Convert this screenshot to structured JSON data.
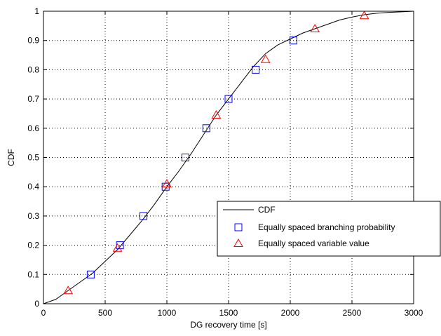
{
  "chart_data": {
    "type": "line",
    "xlabel": "DG recovery time [s]",
    "ylabel": "CDF",
    "xlim": [
      0,
      3000
    ],
    "ylim": [
      0,
      1
    ],
    "xticks": [
      0,
      500,
      1000,
      1500,
      2000,
      2500,
      3000
    ],
    "yticks": [
      0,
      0.1,
      0.2,
      0.3,
      0.4,
      0.5,
      0.6,
      0.7,
      0.8,
      0.9,
      1
    ],
    "xtick_labels": [
      "0",
      "500",
      "1000",
      "1500",
      "2000",
      "2500",
      "3000"
    ],
    "ytick_labels": [
      "0",
      "0.1",
      "0.2",
      "0.3",
      "0.4",
      "0.5",
      "0.6",
      "0.7",
      "0.8",
      "0.9",
      "1"
    ],
    "grid": true,
    "grid_style": "dotted",
    "legend_position": "lower-right",
    "series": [
      {
        "name": "CDF",
        "style": "line",
        "color": "#000000",
        "x": [
          0,
          100,
          200,
          300,
          400,
          500,
          600,
          700,
          800,
          900,
          1000,
          1100,
          1200,
          1300,
          1400,
          1500,
          1600,
          1700,
          1800,
          1900,
          2000,
          2100,
          2200,
          2300,
          2400,
          2500,
          2600,
          2700,
          2800,
          2900,
          3000
        ],
        "y": [
          0,
          0.015,
          0.045,
          0.075,
          0.105,
          0.145,
          0.185,
          0.235,
          0.285,
          0.34,
          0.4,
          0.455,
          0.515,
          0.58,
          0.645,
          0.7,
          0.755,
          0.81,
          0.855,
          0.885,
          0.905,
          0.925,
          0.94,
          0.955,
          0.97,
          0.98,
          0.988,
          0.993,
          0.996,
          0.998,
          1.0
        ]
      },
      {
        "name": "Equally spaced branching probability",
        "style": "marker",
        "marker": "square",
        "color": "#0000ff",
        "x": [
          383,
          620,
          810,
          990,
          1150,
          1320,
          1500,
          1720,
          2025
        ],
        "y": [
          0.1,
          0.2,
          0.3,
          0.4,
          0.5,
          0.6,
          0.7,
          0.8,
          0.9
        ]
      },
      {
        "name": "Equally spaced variable value",
        "style": "marker",
        "marker": "triangle",
        "color": "#ff0000",
        "x": [
          200,
          600,
          1000,
          1400,
          1800,
          2200,
          2600
        ],
        "y": [
          0.045,
          0.19,
          0.41,
          0.645,
          0.835,
          0.94,
          0.985
        ]
      }
    ]
  }
}
